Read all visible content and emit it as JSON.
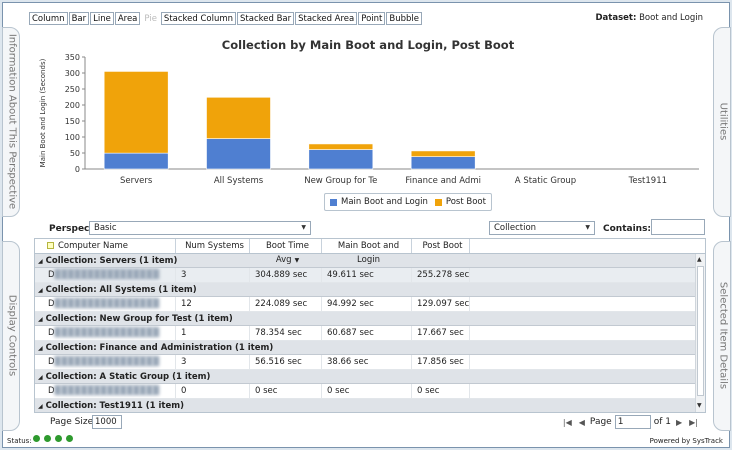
{
  "chart_types": [
    "Column",
    "Bar",
    "Line",
    "Area",
    "Pie",
    "Stacked Column",
    "Stacked Bar",
    "Stacked Area",
    "Point",
    "Bubble"
  ],
  "chart_types_disabled": [
    "Pie"
  ],
  "dataset": {
    "label": "Dataset:",
    "value": "Boot and Login"
  },
  "side_panels": {
    "top_left": "Information About This Perspective",
    "bottom_left": "Display Controls",
    "top_right": "Utilities",
    "bottom_right": "Selected Item Details"
  },
  "chart_data": {
    "type": "bar",
    "title": "Collection by Main Boot and Login, Post Boot",
    "ylabel": "Main Boot and Login (Seconds)",
    "xlabel": "",
    "ylim": [
      0,
      350
    ],
    "yticks": [
      0,
      50,
      100,
      150,
      200,
      250,
      300,
      350
    ],
    "categories": [
      "Servers",
      "All Systems",
      "New Group for Te",
      "Finance and Admi",
      "A Static Group",
      "Test1911"
    ],
    "series": [
      {
        "name": "Main Boot and Login",
        "color": "#4f7fd1",
        "values": [
          49.611,
          94.992,
          60.687,
          38.66,
          0,
          0
        ]
      },
      {
        "name": "Post Boot",
        "color": "#f0a30a",
        "values": [
          255.278,
          129.097,
          17.667,
          17.856,
          0,
          0
        ]
      }
    ],
    "stacked": true,
    "grid": false,
    "legend": "bottom-center"
  },
  "perspective": {
    "label": "Perspective",
    "value": "Basic"
  },
  "collection_select": {
    "value": "Collection"
  },
  "contains": {
    "label": "Contains:",
    "value": ""
  },
  "grid": {
    "columns": [
      "Computer Name",
      "Num Systems",
      "Boot Time Avg",
      "Main Boot and Login",
      "Post Boot"
    ],
    "sort_indicator": "▼",
    "groups": [
      {
        "header": "Collection: Servers (1 item)",
        "row": [
          "D",
          "3",
          "304.889 sec",
          "49.611 sec",
          "255.278 sec"
        ]
      },
      {
        "header": "Collection: All Systems (1 item)",
        "row": [
          "D",
          "12",
          "224.089 sec",
          "94.992 sec",
          "129.097 sec"
        ]
      },
      {
        "header": "Collection: New Group for Test (1 item)",
        "row": [
          "D",
          "1",
          "78.354 sec",
          "60.687 sec",
          "17.667 sec"
        ]
      },
      {
        "header": "Collection: Finance and Administration (1 item)",
        "row": [
          "D",
          "3",
          "56.516 sec",
          "38.66 sec",
          "17.856 sec"
        ]
      },
      {
        "header": "Collection: A Static Group (1 item)",
        "row": [
          "D",
          "0",
          "0 sec",
          "0 sec",
          "0 sec"
        ]
      },
      {
        "header": "Collection: Test1911 (1 item)",
        "row": null
      }
    ]
  },
  "footer": {
    "page_size_label": "Page Size",
    "page_size_value": "1000",
    "page_label": "Page",
    "page_value": "1",
    "of_label": "of 1"
  },
  "status": {
    "label": "Status:",
    "dot_color": "#2e9a2e",
    "powered_by": "Powered by SysTrack"
  }
}
